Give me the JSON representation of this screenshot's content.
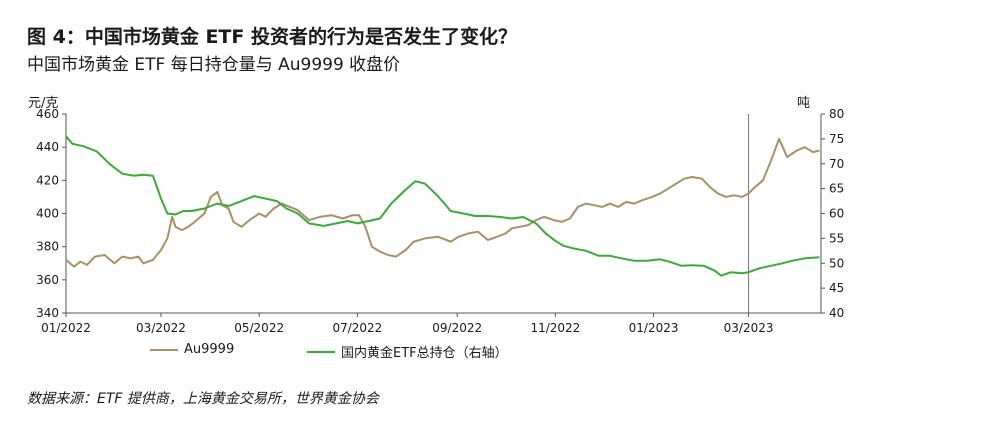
{
  "header": {
    "title": "图 4：中国市场黄金 ETF 投资者的行为是否发生了变化？",
    "subtitle": "中国市场黄金 ETF 每日持仓量与 Au9999 收盘价"
  },
  "footer": {
    "source": "数据来源：ETF 提供商，上海黄金交易所，世界黄金协会"
  },
  "colors": {
    "au9999": "#a89068",
    "etf": "#3aaa3a",
    "axis": "#555555",
    "marker_line": "#777777"
  },
  "chart_data": {
    "type": "line",
    "left_axis_unit": "元/克",
    "right_axis_unit": "吨",
    "y_left": {
      "min": 340,
      "max": 460,
      "ticks": [
        "340",
        "360",
        "380",
        "400",
        "420",
        "440",
        "460"
      ]
    },
    "y_right": {
      "min": 40,
      "max": 80,
      "ticks": [
        "40",
        "45",
        "50",
        "55",
        "60",
        "65",
        "70",
        "75",
        "80"
      ]
    },
    "x_ticks": [
      "01/2022",
      "03/2022",
      "05/2022",
      "07/2022",
      "09/2022",
      "11/2022",
      "01/2023",
      "03/2023"
    ],
    "x_range": [
      "2022-01-01",
      "2023-04-15"
    ],
    "vertical_marker": "2023-03-01",
    "grid": false,
    "legend_position": "bottom",
    "series": [
      {
        "name": "Au9999",
        "axis": "left",
        "points": [
          [
            "2022-01-01",
            372
          ],
          [
            "2022-01-06",
            368
          ],
          [
            "2022-01-10",
            371
          ],
          [
            "2022-01-14",
            369
          ],
          [
            "2022-01-19",
            374
          ],
          [
            "2022-01-25",
            375
          ],
          [
            "2022-01-31",
            370
          ],
          [
            "2022-02-05",
            374
          ],
          [
            "2022-02-10",
            373
          ],
          [
            "2022-02-15",
            374
          ],
          [
            "2022-02-18",
            370
          ],
          [
            "2022-02-24",
            372
          ],
          [
            "2022-03-01",
            378
          ],
          [
            "2022-03-05",
            385
          ],
          [
            "2022-03-08",
            398
          ],
          [
            "2022-03-10",
            392
          ],
          [
            "2022-03-14",
            390
          ],
          [
            "2022-03-18",
            392
          ],
          [
            "2022-03-22",
            395
          ],
          [
            "2022-03-28",
            400
          ],
          [
            "2022-04-01",
            410
          ],
          [
            "2022-04-05",
            413
          ],
          [
            "2022-04-08",
            405
          ],
          [
            "2022-04-12",
            403
          ],
          [
            "2022-04-15",
            395
          ],
          [
            "2022-04-20",
            392
          ],
          [
            "2022-04-25",
            396
          ],
          [
            "2022-05-01",
            400
          ],
          [
            "2022-05-05",
            398
          ],
          [
            "2022-05-10",
            403
          ],
          [
            "2022-05-15",
            406
          ],
          [
            "2022-05-20",
            404
          ],
          [
            "2022-05-25",
            402
          ],
          [
            "2022-06-01",
            396
          ],
          [
            "2022-06-08",
            398
          ],
          [
            "2022-06-15",
            399
          ],
          [
            "2022-06-22",
            397
          ],
          [
            "2022-06-28",
            399
          ],
          [
            "2022-07-02",
            399
          ],
          [
            "2022-07-06",
            392
          ],
          [
            "2022-07-10",
            380
          ],
          [
            "2022-07-15",
            377
          ],
          [
            "2022-07-20",
            375
          ],
          [
            "2022-07-25",
            374
          ],
          [
            "2022-07-31",
            378
          ],
          [
            "2022-08-05",
            383
          ],
          [
            "2022-08-12",
            385
          ],
          [
            "2022-08-20",
            386
          ],
          [
            "2022-08-28",
            383
          ],
          [
            "2022-09-02",
            386
          ],
          [
            "2022-09-08",
            388
          ],
          [
            "2022-09-14",
            389
          ],
          [
            "2022-09-20",
            384
          ],
          [
            "2022-09-26",
            386
          ],
          [
            "2022-10-01",
            388
          ],
          [
            "2022-10-05",
            391
          ],
          [
            "2022-10-10",
            392
          ],
          [
            "2022-10-15",
            393
          ],
          [
            "2022-10-20",
            396
          ],
          [
            "2022-10-25",
            398
          ],
          [
            "2022-10-31",
            396
          ],
          [
            "2022-11-05",
            395
          ],
          [
            "2022-11-10",
            397
          ],
          [
            "2022-11-15",
            404
          ],
          [
            "2022-11-20",
            406
          ],
          [
            "2022-11-25",
            405
          ],
          [
            "2022-11-30",
            404
          ],
          [
            "2022-12-05",
            406
          ],
          [
            "2022-12-10",
            404
          ],
          [
            "2022-12-15",
            407
          ],
          [
            "2022-12-20",
            406
          ],
          [
            "2022-12-25",
            408
          ],
          [
            "2022-12-31",
            410
          ],
          [
            "2023-01-05",
            412
          ],
          [
            "2023-01-10",
            415
          ],
          [
            "2023-01-15",
            418
          ],
          [
            "2023-01-20",
            421
          ],
          [
            "2023-01-25",
            422
          ],
          [
            "2023-01-31",
            421
          ],
          [
            "2023-02-05",
            416
          ],
          [
            "2023-02-10",
            412
          ],
          [
            "2023-02-15",
            410
          ],
          [
            "2023-02-20",
            411
          ],
          [
            "2023-02-25",
            410
          ],
          [
            "2023-03-01",
            412
          ],
          [
            "2023-03-05",
            416
          ],
          [
            "2023-03-10",
            420
          ],
          [
            "2023-03-15",
            432
          ],
          [
            "2023-03-20",
            445
          ],
          [
            "2023-03-25",
            434
          ],
          [
            "2023-03-31",
            438
          ],
          [
            "2023-04-05",
            440
          ],
          [
            "2023-04-10",
            437
          ],
          [
            "2023-04-14",
            438
          ]
        ]
      },
      {
        "name": "国内黄金ETF总持仓（右轴）",
        "axis": "right",
        "points": [
          [
            "2022-01-01",
            75.5
          ],
          [
            "2022-01-05",
            74.0
          ],
          [
            "2022-01-12",
            73.5
          ],
          [
            "2022-01-20",
            72.5
          ],
          [
            "2022-01-28",
            70.0
          ],
          [
            "2022-02-05",
            68.0
          ],
          [
            "2022-02-12",
            67.6
          ],
          [
            "2022-02-18",
            67.8
          ],
          [
            "2022-02-24",
            67.6
          ],
          [
            "2022-03-01",
            63.0
          ],
          [
            "2022-03-05",
            60.0
          ],
          [
            "2022-03-10",
            59.8
          ],
          [
            "2022-03-15",
            60.5
          ],
          [
            "2022-03-20",
            60.5
          ],
          [
            "2022-03-28",
            61.0
          ],
          [
            "2022-04-05",
            62.0
          ],
          [
            "2022-04-12",
            61.5
          ],
          [
            "2022-04-20",
            62.5
          ],
          [
            "2022-04-28",
            63.5
          ],
          [
            "2022-05-05",
            63.0
          ],
          [
            "2022-05-12",
            62.5
          ],
          [
            "2022-05-18",
            61.0
          ],
          [
            "2022-05-25",
            60.0
          ],
          [
            "2022-06-01",
            58.0
          ],
          [
            "2022-06-10",
            57.5
          ],
          [
            "2022-06-18",
            58.0
          ],
          [
            "2022-06-25",
            58.5
          ],
          [
            "2022-07-01",
            58.0
          ],
          [
            "2022-07-08",
            58.5
          ],
          [
            "2022-07-15",
            59.0
          ],
          [
            "2022-07-22",
            62.0
          ],
          [
            "2022-07-30",
            64.5
          ],
          [
            "2022-08-06",
            66.5
          ],
          [
            "2022-08-12",
            66.0
          ],
          [
            "2022-08-20",
            63.5
          ],
          [
            "2022-08-28",
            60.5
          ],
          [
            "2022-09-05",
            60.0
          ],
          [
            "2022-09-12",
            59.5
          ],
          [
            "2022-09-20",
            59.5
          ],
          [
            "2022-09-28",
            59.3
          ],
          [
            "2022-10-05",
            59.0
          ],
          [
            "2022-10-12",
            59.3
          ],
          [
            "2022-10-20",
            58.0
          ],
          [
            "2022-10-26",
            56.0
          ],
          [
            "2022-11-01",
            54.5
          ],
          [
            "2022-11-06",
            53.5
          ],
          [
            "2022-11-12",
            53.0
          ],
          [
            "2022-11-20",
            52.5
          ],
          [
            "2022-11-28",
            51.5
          ],
          [
            "2022-12-05",
            51.5
          ],
          [
            "2022-12-12",
            51.0
          ],
          [
            "2022-12-20",
            50.5
          ],
          [
            "2022-12-28",
            50.5
          ],
          [
            "2023-01-05",
            50.8
          ],
          [
            "2023-01-12",
            50.2
          ],
          [
            "2023-01-18",
            49.5
          ],
          [
            "2023-01-25",
            49.6
          ],
          [
            "2023-02-01",
            49.5
          ],
          [
            "2023-02-08",
            48.5
          ],
          [
            "2023-02-12",
            47.5
          ],
          [
            "2023-02-18",
            48.2
          ],
          [
            "2023-02-25",
            48.0
          ],
          [
            "2023-03-01",
            48.2
          ],
          [
            "2023-03-08",
            49.0
          ],
          [
            "2023-03-15",
            49.5
          ],
          [
            "2023-03-22",
            50.0
          ],
          [
            "2023-03-28",
            50.5
          ],
          [
            "2023-04-05",
            51.0
          ],
          [
            "2023-04-14",
            51.2
          ]
        ]
      }
    ]
  }
}
